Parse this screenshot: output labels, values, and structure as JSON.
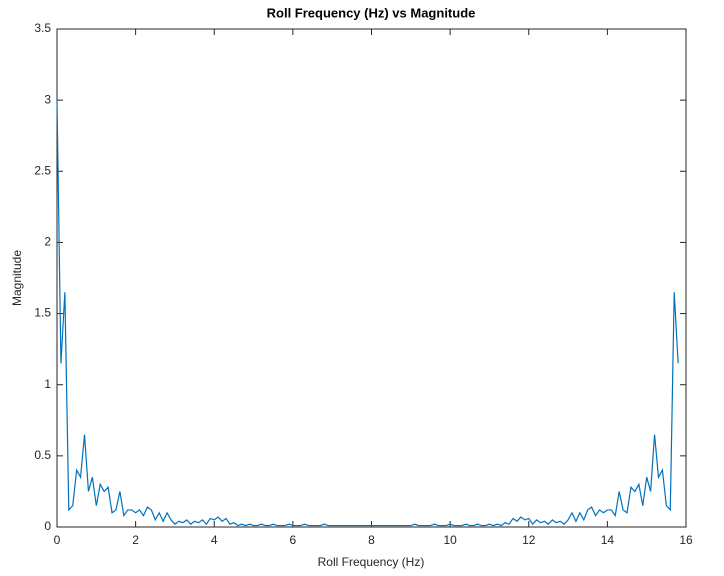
{
  "chart_data": {
    "type": "line",
    "title": "Roll Frequency (Hz) vs Magnitude",
    "x_label": "Roll Frequency (Hz)",
    "y_label": "Magnitude",
    "xlim": [
      0,
      16
    ],
    "ylim": [
      0,
      3.5
    ],
    "xticks": [
      0,
      2,
      4,
      6,
      8,
      10,
      12,
      14,
      16
    ],
    "yticks": [
      0,
      0.5,
      1,
      1.5,
      2,
      2.5,
      3,
      3.5
    ],
    "grid": false,
    "x": [
      0,
      0.1,
      0.2,
      0.3,
      0.4,
      0.5,
      0.6,
      0.7,
      0.8,
      0.9,
      1,
      1.1,
      1.2,
      1.3,
      1.4,
      1.5,
      1.6,
      1.7,
      1.8,
      1.9,
      2,
      2.1,
      2.2,
      2.3,
      2.4,
      2.5,
      2.6,
      2.7,
      2.8,
      2.9,
      3,
      3.1,
      3.2,
      3.3,
      3.4,
      3.5,
      3.6,
      3.7,
      3.8,
      3.9,
      4,
      4.1,
      4.2,
      4.3,
      4.4,
      4.5,
      4.6,
      4.7,
      4.8,
      4.9,
      5,
      5.1,
      5.2,
      5.3,
      5.4,
      5.5,
      5.6,
      5.7,
      5.8,
      5.9,
      6,
      6.1,
      6.2,
      6.3,
      6.4,
      6.5,
      6.6,
      6.7,
      6.8,
      6.9,
      7,
      7.1,
      7.2,
      7.3,
      7.4,
      7.5,
      7.6,
      7.7,
      7.8,
      7.9,
      8,
      8.1,
      8.2,
      8.3,
      8.4,
      8.5,
      8.6,
      8.7,
      8.8,
      8.9,
      9,
      9.1,
      9.2,
      9.3,
      9.4,
      9.5,
      9.6,
      9.7,
      9.8,
      9.9,
      10,
      10.1,
      10.2,
      10.3,
      10.4,
      10.5,
      10.6,
      10.7,
      10.8,
      10.9,
      11,
      11.1,
      11.2,
      11.3,
      11.4,
      11.5,
      11.6,
      11.7,
      11.8,
      11.9,
      12,
      12.1,
      12.2,
      12.3,
      12.4,
      12.5,
      12.6,
      12.7,
      12.8,
      12.9,
      13,
      13.1,
      13.2,
      13.3,
      13.4,
      13.5,
      13.6,
      13.7,
      13.8,
      13.9,
      14,
      14.1,
      14.2,
      14.3,
      14.4,
      14.5,
      14.6,
      14.7,
      14.8,
      14.9,
      15,
      15.1,
      15.2,
      15.3,
      15.4,
      15.5,
      15.6,
      15.7,
      15.8
    ],
    "series": [
      {
        "name": "Magnitude",
        "color": "#0072bd",
        "values": [
          3.0,
          1.15,
          1.65,
          0.12,
          0.15,
          0.4,
          0.35,
          0.65,
          0.25,
          0.35,
          0.15,
          0.3,
          0.25,
          0.28,
          0.1,
          0.12,
          0.25,
          0.08,
          0.12,
          0.12,
          0.1,
          0.12,
          0.08,
          0.14,
          0.12,
          0.05,
          0.1,
          0.04,
          0.1,
          0.05,
          0.02,
          0.04,
          0.03,
          0.05,
          0.02,
          0.04,
          0.03,
          0.05,
          0.02,
          0.06,
          0.05,
          0.07,
          0.04,
          0.06,
          0.02,
          0.03,
          0.01,
          0.02,
          0.01,
          0.02,
          0.01,
          0.01,
          0.02,
          0.01,
          0.01,
          0.02,
          0.01,
          0.01,
          0.01,
          0.02,
          0.01,
          0.01,
          0.01,
          0.02,
          0.01,
          0.01,
          0.01,
          0.01,
          0.02,
          0.01,
          0.01,
          0.01,
          0.01,
          0.01,
          0.01,
          0.01,
          0.01,
          0.01,
          0.01,
          0.01,
          0.01,
          0.01,
          0.01,
          0.01,
          0.01,
          0.01,
          0.01,
          0.01,
          0.01,
          0.01,
          0.01,
          0.02,
          0.01,
          0.01,
          0.01,
          0.01,
          0.02,
          0.01,
          0.01,
          0.01,
          0.02,
          0.01,
          0.01,
          0.01,
          0.02,
          0.01,
          0.01,
          0.02,
          0.01,
          0.01,
          0.02,
          0.01,
          0.02,
          0.01,
          0.03,
          0.02,
          0.06,
          0.04,
          0.07,
          0.05,
          0.06,
          0.02,
          0.05,
          0.03,
          0.04,
          0.02,
          0.05,
          0.03,
          0.04,
          0.02,
          0.05,
          0.1,
          0.04,
          0.1,
          0.05,
          0.12,
          0.14,
          0.08,
          0.12,
          0.1,
          0.12,
          0.12,
          0.08,
          0.25,
          0.12,
          0.1,
          0.28,
          0.25,
          0.3,
          0.15,
          0.35,
          0.25,
          0.65,
          0.35,
          0.4,
          0.15,
          0.12,
          1.65,
          1.15
        ]
      }
    ]
  }
}
